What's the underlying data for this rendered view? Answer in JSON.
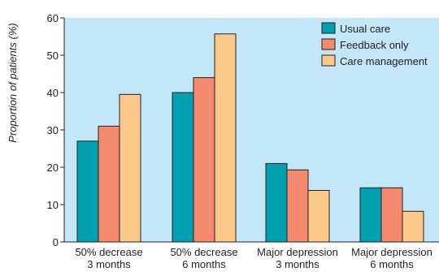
{
  "chart_data": {
    "type": "bar",
    "title": "",
    "xlabel": "",
    "ylabel": "Proportion of patients (%)",
    "ylim": [
      0,
      60
    ],
    "yticks": [
      0,
      10,
      20,
      30,
      40,
      50,
      60
    ],
    "grid": false,
    "legend_position": "top-right",
    "categories": [
      [
        "50% decrease",
        "3 months"
      ],
      [
        "50% decrease",
        "6 months"
      ],
      [
        "Major depression",
        "3 months"
      ],
      [
        "Major depression",
        "6 months"
      ]
    ],
    "series": [
      {
        "name": "Usual care",
        "color": "#00a0b0",
        "values": [
          27,
          40,
          21,
          14.5
        ]
      },
      {
        "name": "Feedback only",
        "color": "#f58a6e",
        "values": [
          31,
          44,
          19.3,
          14.5
        ]
      },
      {
        "name": "Care management",
        "color": "#fcc98a",
        "values": [
          39.5,
          55.7,
          13.8,
          8.2
        ]
      }
    ],
    "plot_background": "#c3e6f8"
  }
}
